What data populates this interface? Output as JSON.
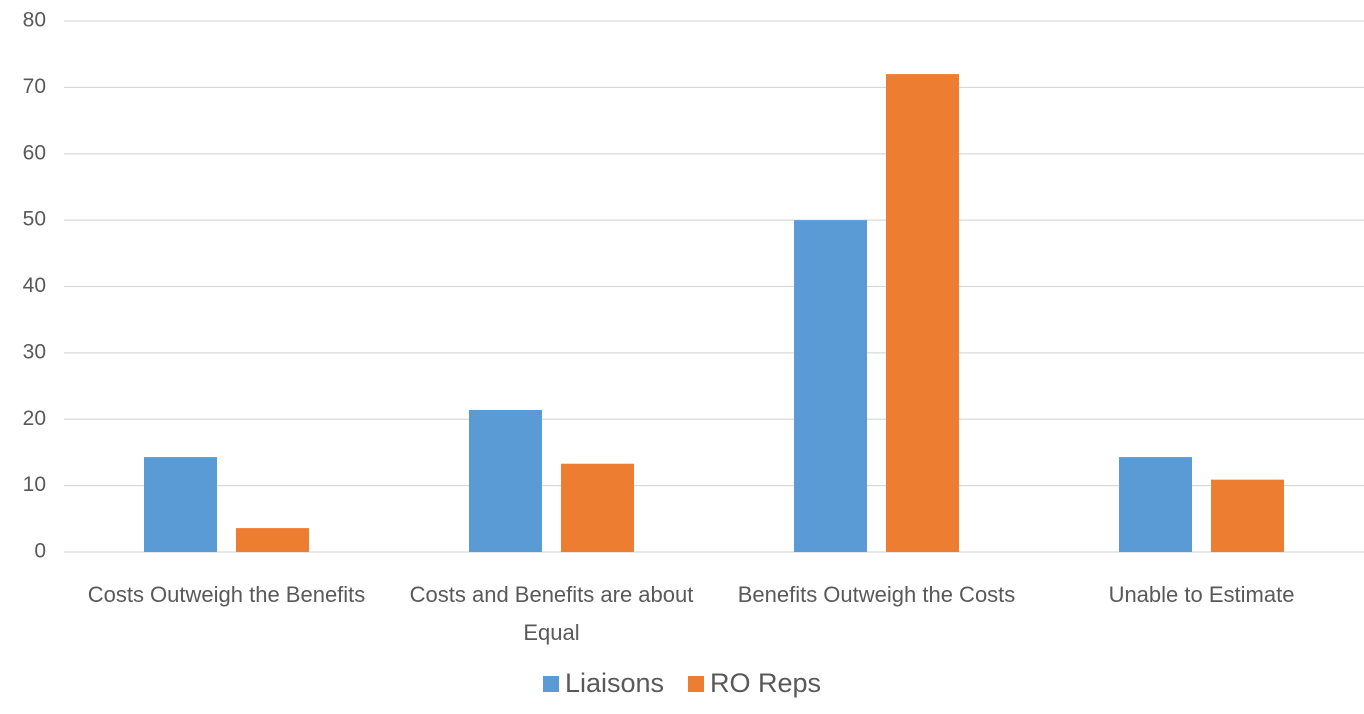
{
  "chart_data": {
    "type": "bar",
    "categories": [
      "Costs Outweigh the Benefits",
      "Costs and Benefits are about Equal",
      "Benefits Outweigh the Costs",
      "Unable to Estimate"
    ],
    "series": [
      {
        "name": "Liaisons",
        "color": "#5b9bd5",
        "values": [
          14.3,
          21.4,
          50,
          14.3
        ]
      },
      {
        "name": "RO Reps",
        "color": "#ed7d31",
        "values": [
          3.6,
          13.3,
          72,
          10.9
        ]
      }
    ],
    "ylim": [
      0,
      80
    ],
    "yticks": [
      0,
      10,
      20,
      30,
      40,
      50,
      60,
      70,
      80
    ],
    "grid": true,
    "legend": "bottom"
  }
}
